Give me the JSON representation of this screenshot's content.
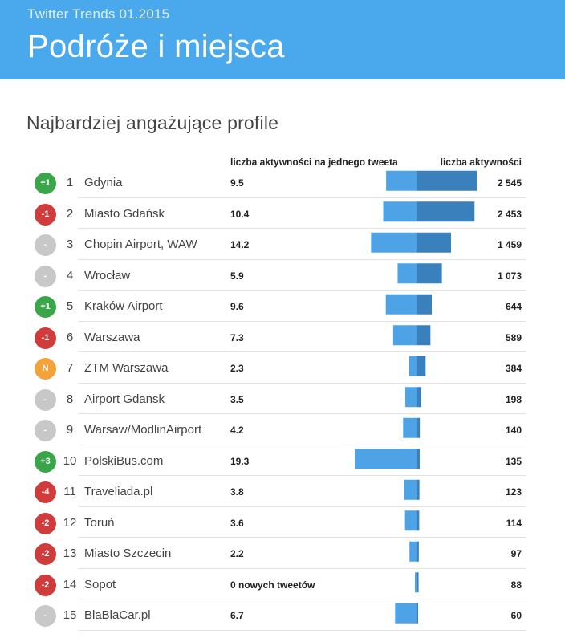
{
  "header": {
    "subtitle": "Twitter Trends 01.2015",
    "title": "Podróże i miejsca"
  },
  "section_title": "Najbardziej angażujące profile",
  "columns": {
    "ratio_label": "liczba aktywności na jednego tweeta",
    "total_label": "liczba aktywności"
  },
  "colors": {
    "banner": "#4aa8ec",
    "ratio_bar": "#4ea3e6",
    "total_bar": "#3a80bd",
    "badge_up": "#3aa64a",
    "badge_down": "#d03b3b",
    "badge_same": "#c8c8c8",
    "badge_new": "#f4a23a"
  },
  "chart_data": {
    "type": "bar",
    "title": "Najbardziej angażujące profile",
    "series": [
      {
        "name": "liczba aktywności na jednego tweeta",
        "values": [
          9.5,
          10.4,
          14.2,
          5.9,
          9.6,
          7.3,
          2.3,
          3.5,
          4.2,
          19.3,
          3.8,
          3.6,
          2.2,
          0,
          6.7
        ]
      },
      {
        "name": "liczba aktywności",
        "values": [
          2545,
          2453,
          1459,
          1073,
          644,
          589,
          384,
          198,
          140,
          135,
          123,
          114,
          97,
          88,
          60
        ]
      }
    ],
    "rows": [
      {
        "rank": "1",
        "change": "+1",
        "status": "up",
        "name": "Gdynia",
        "ratio": 9.5,
        "ratio_label": "9.5",
        "total": 2545,
        "total_label": "2 545"
      },
      {
        "rank": "2",
        "change": "-1",
        "status": "down",
        "name": "Miasto Gdańsk",
        "ratio": 10.4,
        "ratio_label": "10.4",
        "total": 2453,
        "total_label": "2 453"
      },
      {
        "rank": "3",
        "change": "-",
        "status": "same",
        "name": "Chopin Airport, WAW",
        "ratio": 14.2,
        "ratio_label": "14.2",
        "total": 1459,
        "total_label": "1 459"
      },
      {
        "rank": "4",
        "change": "-",
        "status": "same",
        "name": "Wrocław",
        "ratio": 5.9,
        "ratio_label": "5.9",
        "total": 1073,
        "total_label": "1 073"
      },
      {
        "rank": "5",
        "change": "+1",
        "status": "up",
        "name": "Kraków Airport",
        "ratio": 9.6,
        "ratio_label": "9.6",
        "total": 644,
        "total_label": "644"
      },
      {
        "rank": "6",
        "change": "-1",
        "status": "down",
        "name": "Warszawa",
        "ratio": 7.3,
        "ratio_label": "7.3",
        "total": 589,
        "total_label": "589"
      },
      {
        "rank": "7",
        "change": "N",
        "status": "new",
        "name": "ZTM Warszawa",
        "ratio": 2.3,
        "ratio_label": "2.3",
        "total": 384,
        "total_label": "384"
      },
      {
        "rank": "8",
        "change": "-",
        "status": "same",
        "name": "Airport Gdansk",
        "ratio": 3.5,
        "ratio_label": "3.5",
        "total": 198,
        "total_label": "198"
      },
      {
        "rank": "9",
        "change": "-",
        "status": "same",
        "name": "Warsaw/ModlinAirport",
        "ratio": 4.2,
        "ratio_label": "4.2",
        "total": 140,
        "total_label": "140"
      },
      {
        "rank": "10",
        "change": "+3",
        "status": "up",
        "name": "PolskiBus.com",
        "ratio": 19.3,
        "ratio_label": "19.3",
        "total": 135,
        "total_label": "135"
      },
      {
        "rank": "11",
        "change": "-4",
        "status": "down",
        "name": "Traveliada.pl",
        "ratio": 3.8,
        "ratio_label": "3.8",
        "total": 123,
        "total_label": "123"
      },
      {
        "rank": "12",
        "change": "-2",
        "status": "down",
        "name": "Toruń",
        "ratio": 3.6,
        "ratio_label": "3.6",
        "total": 114,
        "total_label": "114"
      },
      {
        "rank": "13",
        "change": "-2",
        "status": "down",
        "name": "Miasto Szczecin",
        "ratio": 2.2,
        "ratio_label": "2.2",
        "total": 97,
        "total_label": "97"
      },
      {
        "rank": "14",
        "change": "-2",
        "status": "down",
        "name": "Sopot",
        "ratio": 0,
        "ratio_label": "0 nowych tweetów",
        "total": 88,
        "total_label": "88"
      },
      {
        "rank": "15",
        "change": "-",
        "status": "same",
        "name": "BlaBlaCar.pl",
        "ratio": 6.7,
        "ratio_label": "6.7",
        "total": 60,
        "total_label": "60"
      }
    ]
  }
}
